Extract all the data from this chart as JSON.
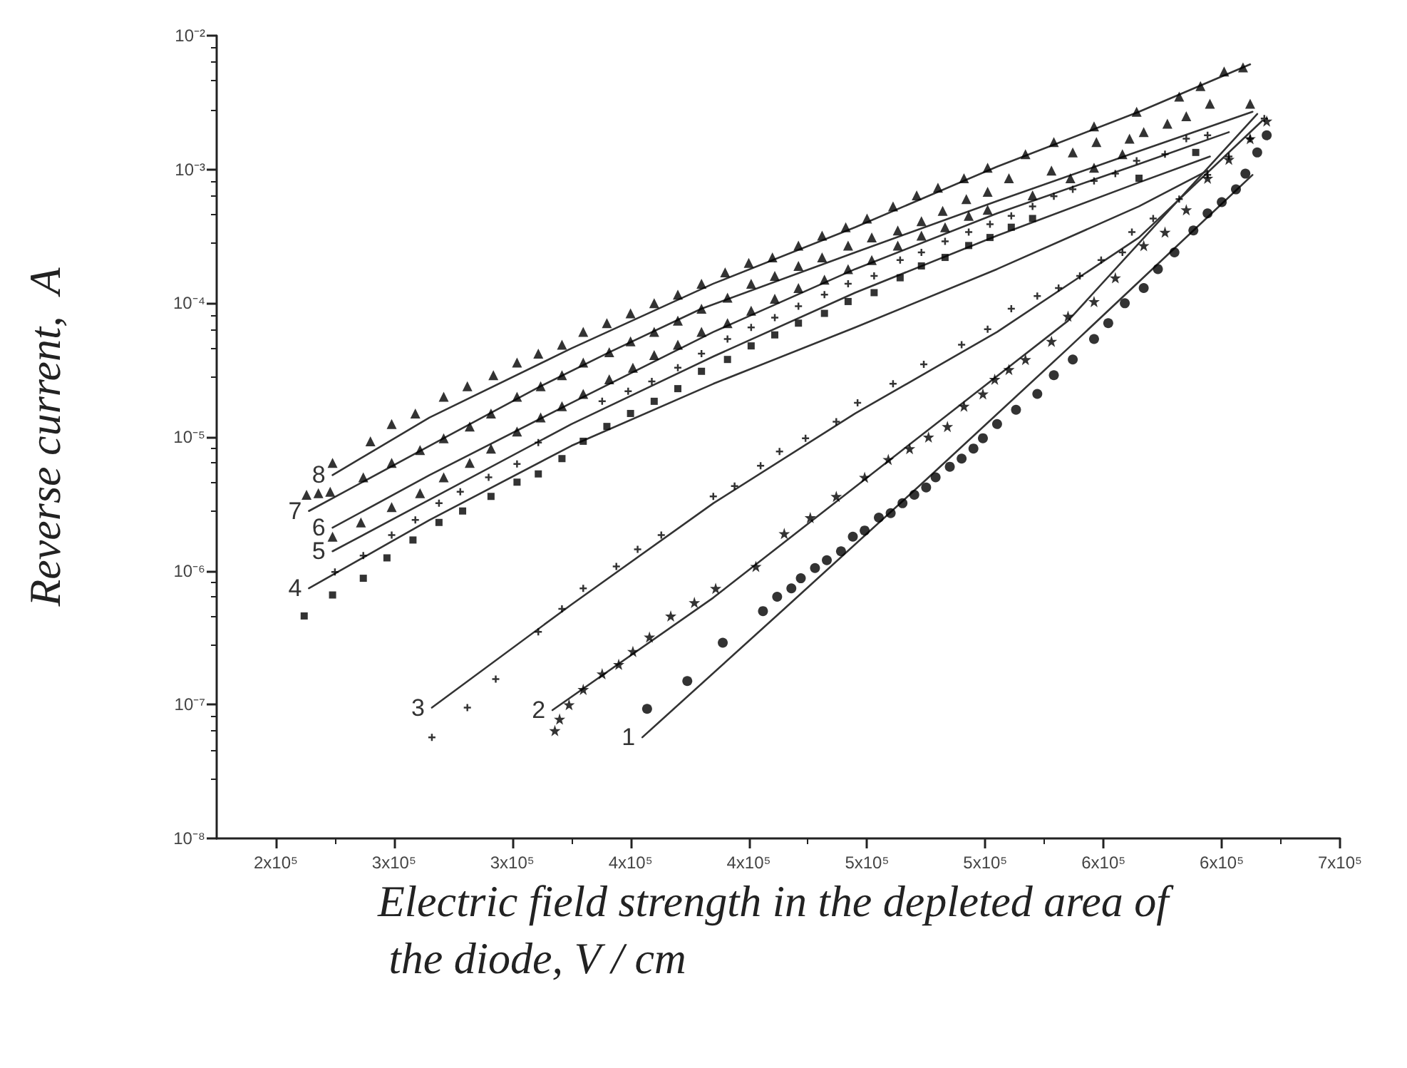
{
  "chart_data": {
    "type": "scatter",
    "xlabel": "Electric field strength in the depleted area of the diode, V / cm",
    "ylabel": "Reverse current,  A",
    "log": "y",
    "grid": false,
    "xlim": [
      200000,
      675000
    ],
    "xticks": [
      {
        "value": 225000,
        "label": "2x10⁵"
      },
      {
        "value": 275000,
        "label": "3x10⁵"
      },
      {
        "value": 325000,
        "label": "3x10⁵"
      },
      {
        "value": 375000,
        "label": "4x10⁵"
      },
      {
        "value": 425000,
        "label": "4x10⁵"
      },
      {
        "value": 475000,
        "label": "5x10⁵"
      },
      {
        "value": 525000,
        "label": "5x10⁵"
      },
      {
        "value": 575000,
        "label": "6x10⁵"
      },
      {
        "value": 625000,
        "label": "6x10⁵"
      },
      {
        "value": 675000,
        "label": "7x10⁵"
      }
    ],
    "ylim": [
      1e-08,
      0.01
    ],
    "yticks": [
      {
        "value": 1e-08,
        "label": "10⁻⁸"
      },
      {
        "value": 1e-07,
        "label": "10⁻⁷"
      },
      {
        "value": 1e-06,
        "label": "10⁻⁶"
      },
      {
        "value": 1e-05,
        "label": "10⁻⁵"
      },
      {
        "value": 0.0001,
        "label": "10⁻⁴"
      },
      {
        "value": 0.001,
        "label": "10⁻³"
      },
      {
        "value": 0.01,
        "label": "10⁻²"
      }
    ],
    "series": [
      {
        "marker": "circle",
        "color": "#000000",
        "x": [
          382000,
          399000,
          414000,
          431000,
          437000,
          443000,
          447000,
          453000,
          458000,
          464000,
          469000,
          474000,
          480000,
          485000,
          490000,
          495000,
          500000,
          504000,
          510000,
          515000,
          520000,
          524000,
          530000,
          538000,
          547000,
          554000,
          562000,
          571000,
          577000,
          584000,
          592000,
          598000,
          605000,
          613000,
          619000,
          625000,
          631000,
          635000,
          640000,
          644000
        ],
        "values": [
          9.3e-08,
          1.5e-07,
          2.9e-07,
          5e-07,
          6.4e-07,
          7.4e-07,
          8.8e-07,
          1.05e-06,
          1.2e-06,
          1.4e-06,
          1.8e-06,
          2e-06,
          2.5e-06,
          2.7e-06,
          3.2e-06,
          3.7e-06,
          4.2e-06,
          5e-06,
          6e-06,
          6.9e-06,
          8.2e-06,
          9.8e-06,
          1.25e-05,
          1.6e-05,
          2.1e-05,
          2.9e-05,
          3.8e-05,
          5.4e-05,
          7.1e-05,
          0.0001,
          0.00013,
          0.00018,
          0.00024,
          0.00035,
          0.00047,
          0.00057,
          0.00071,
          0.00093,
          0.00134,
          0.0018
        ]
      },
      {
        "name": "1",
        "type": "line",
        "marker": "none",
        "color": "#333333",
        "x": [
          380000,
          440000,
          500000,
          560000,
          638000
        ],
        "values": [
          5.7e-08,
          5.2e-07,
          4.8e-06,
          4.6e-05,
          0.00091
        ]
      },
      {
        "marker": "star",
        "color": "#000000",
        "x": [
          343000,
          345000,
          349000,
          355000,
          363000,
          370000,
          376000,
          383000,
          392000,
          402000,
          411000,
          428000,
          440000,
          451000,
          462000,
          474000,
          484000,
          493000,
          501000,
          509000,
          516000,
          524000,
          529000,
          535000,
          542000,
          553000,
          560000,
          571000,
          580000,
          592000,
          601000,
          610000,
          619000,
          628000,
          637000,
          644000
        ],
        "values": [
          6.4e-08,
          7.8e-08,
          1e-07,
          1.3e-07,
          1.7e-07,
          2e-07,
          2.5e-07,
          3.2e-07,
          4.6e-07,
          5.8e-07,
          7.4e-07,
          1.08e-06,
          1.9e-06,
          2.5e-06,
          3.6e-06,
          5e-06,
          6.8e-06,
          8.2e-06,
          1e-05,
          1.2e-05,
          1.7e-05,
          2.1e-05,
          2.7e-05,
          3.2e-05,
          3.8e-05,
          5.2e-05,
          8e-05,
          0.000103,
          0.000155,
          0.00027,
          0.00034,
          0.0005,
          0.00086,
          0.00119,
          0.0017,
          0.0023
        ]
      },
      {
        "name": "2",
        "type": "line",
        "marker": "none",
        "color": "#333333",
        "x": [
          342000,
          410000,
          500000,
          560000,
          640000
        ],
        "values": [
          9.1e-08,
          6.3e-07,
          1.1e-05,
          7.4e-05,
          0.0026
        ]
      },
      {
        "marker": "cross",
        "color": "#000000",
        "x": [
          291000,
          306000,
          318000,
          336000,
          346000,
          355000,
          369000,
          378000,
          388000,
          410000,
          419000,
          430000,
          438000,
          449000,
          462000,
          471000,
          486000,
          499000,
          515000,
          526000,
          536000,
          547000,
          556000,
          565000,
          574000,
          583000,
          587000,
          596000,
          607000,
          619000,
          628000,
          637000,
          643000
        ],
        "values": [
          5.7e-08,
          9.5e-08,
          1.55e-07,
          3.5e-07,
          5.2e-07,
          7.4e-07,
          1.08e-06,
          1.45e-06,
          1.85e-06,
          3.6e-06,
          4.3e-06,
          6.1e-06,
          7.8e-06,
          9.8e-06,
          1.3e-05,
          1.8e-05,
          2.5e-05,
          3.5e-05,
          4.9e-05,
          6.4e-05,
          9.1e-05,
          0.000113,
          0.00013,
          0.00016,
          0.00021,
          0.00024,
          0.00034,
          0.00043,
          0.0006,
          0.00091,
          0.00125,
          0.0017,
          0.0024
        ]
      },
      {
        "name": "3",
        "type": "line",
        "marker": "none",
        "color": "#333333",
        "x": [
          291000,
          350000,
          410000,
          470000,
          530000,
          590000,
          642000
        ],
        "values": [
          9.5e-08,
          5.6e-07,
          3.2e-06,
          1.5e-05,
          6.1e-05,
          0.00031,
          0.0023
        ]
      },
      {
        "marker": "square",
        "color": "#000000",
        "x": [
          237000,
          249000,
          262000,
          272000,
          283000,
          294000,
          304000,
          316000,
          327000,
          336000,
          346000,
          355000,
          365000,
          375000,
          385000,
          395000,
          405000,
          416000,
          426000,
          436000,
          446000,
          457000,
          467000,
          478000,
          489000,
          498000,
          508000,
          518000,
          527000,
          536000,
          545000,
          590000,
          614000
        ],
        "values": [
          4.6e-07,
          6.6e-07,
          8.8e-07,
          1.25e-06,
          1.7e-06,
          2.3e-06,
          2.8e-06,
          3.6e-06,
          4.6e-06,
          5.3e-06,
          6.9e-06,
          9.3e-06,
          1.2e-05,
          1.5e-05,
          1.85e-05,
          2.3e-05,
          3.1e-05,
          3.8e-05,
          4.8e-05,
          5.8e-05,
          7.1e-05,
          8.4e-05,
          0.000103,
          0.00012,
          0.000155,
          0.00019,
          0.00022,
          0.00027,
          0.00031,
          0.00037,
          0.00043,
          0.00086,
          0.00134
        ]
      },
      {
        "name": "4",
        "type": "line",
        "marker": "none",
        "color": "#333333",
        "x": [
          239000,
          290000,
          350000,
          410000,
          470000,
          530000,
          590000,
          619000
        ],
        "values": [
          7.4e-07,
          2.4e-06,
          8.6e-06,
          2.5e-05,
          6.6e-05,
          0.00018,
          0.00053,
          0.00098
        ]
      },
      {
        "marker": "cross",
        "color": "#000000",
        "x": [
          250000,
          262000,
          274000,
          284000,
          294000,
          303000,
          315000,
          327000,
          336000,
          363000,
          374000,
          384000,
          395000,
          405000,
          416000,
          426000,
          436000,
          446000,
          457000,
          467000,
          478000,
          489000,
          498000,
          508000,
          518000,
          527000,
          536000,
          545000,
          554000,
          562000,
          571000,
          580000,
          589000,
          601000,
          610000,
          619000
        ],
        "values": [
          9.8e-07,
          1.3e-06,
          1.85e-06,
          2.4e-06,
          3.2e-06,
          3.9e-06,
          5e-06,
          6.3e-06,
          9.1e-06,
          1.85e-05,
          2.2e-05,
          2.6e-05,
          3.3e-05,
          4.2e-05,
          5.4e-05,
          6.6e-05,
          7.8e-05,
          9.5e-05,
          0.000116,
          0.00014,
          0.00016,
          0.00021,
          0.00024,
          0.00029,
          0.00034,
          0.00039,
          0.00045,
          0.00053,
          0.00063,
          0.00071,
          0.00082,
          0.00093,
          0.00116,
          0.0013,
          0.0017,
          0.0018
        ]
      },
      {
        "name": "5",
        "type": "line",
        "marker": "none",
        "color": "#333333",
        "x": [
          249000,
          290000,
          350000,
          410000,
          470000,
          530000,
          590000,
          620000
        ],
        "values": [
          1.4e-06,
          3.4e-06,
          1.25e-05,
          4e-05,
          0.00012,
          0.00032,
          0.0008,
          0.00125
        ]
      },
      {
        "marker": "triangle",
        "color": "#000000",
        "x": [
          249000,
          261000,
          274000,
          286000,
          296000,
          307000,
          316000,
          327000,
          337000,
          346000,
          355000,
          366000,
          376000,
          385000,
          395000,
          405000,
          416000,
          426000,
          436000,
          446000,
          457000,
          467000,
          477000,
          488000,
          498000,
          508000,
          518000,
          526000,
          545000,
          561000,
          571000,
          583000,
          592000,
          610000,
          637000
        ],
        "values": [
          1.8e-06,
          2.3e-06,
          3e-06,
          3.8e-06,
          5e-06,
          6.4e-06,
          8.2e-06,
          1.1e-05,
          1.4e-05,
          1.7e-05,
          2.1e-05,
          2.7e-05,
          3.3e-05,
          4.1e-05,
          4.9e-05,
          6.1e-05,
          7.1e-05,
          8.8e-05,
          0.000108,
          0.00013,
          0.00015,
          0.00018,
          0.00021,
          0.00027,
          0.00032,
          0.00037,
          0.00045,
          0.0005,
          0.00064,
          0.00086,
          0.00103,
          0.0013,
          0.0019,
          0.0025,
          0.0031
        ]
      },
      {
        "name": "6",
        "type": "line",
        "marker": "none",
        "color": "#333333",
        "x": [
          249000,
          290000,
          350000,
          410000,
          470000,
          530000,
          590000,
          628000
        ],
        "values": [
          2.1e-06,
          5.2e-06,
          1.8e-05,
          6.1e-05,
          0.00018,
          0.00047,
          0.0011,
          0.0019
        ]
      },
      {
        "marker": "triangle",
        "color": "#000000",
        "x": [
          262000,
          274000,
          286000,
          296000,
          307000,
          316000,
          327000,
          337000,
          346000,
          355000,
          366000,
          375000,
          385000,
          395000,
          405000,
          416000,
          426000,
          436000,
          446000,
          456000,
          467000,
          477000,
          488000,
          498000,
          507000,
          517000,
          526000,
          535000,
          553000,
          562000,
          572000,
          586000,
          602000,
          620000
        ],
        "values": [
          5e-06,
          6.4e-06,
          8e-06,
          9.8e-06,
          1.2e-05,
          1.5e-05,
          2e-05,
          2.4e-05,
          2.9e-05,
          3.6e-05,
          4.3e-05,
          5.2e-05,
          6.1e-05,
          7.4e-05,
          9.1e-05,
          0.00011,
          0.00014,
          0.00016,
          0.00019,
          0.00022,
          0.00027,
          0.00031,
          0.00035,
          0.00041,
          0.00049,
          0.0006,
          0.00068,
          0.00086,
          0.00098,
          0.00134,
          0.0016,
          0.0017,
          0.0022,
          0.0031
        ]
      },
      {
        "name": "7",
        "type": "line",
        "marker": "none",
        "color": "#333333",
        "x": [
          239000,
          296000,
          337000,
          366000,
          405000,
          470000,
          530000,
          590000,
          638000
        ],
        "values": [
          2.8e-06,
          9.8e-06,
          2.4e-05,
          4.3e-05,
          9.1e-05,
          0.00024,
          0.00058,
          0.00137,
          0.0027
        ]
      },
      {
        "marker": "triangle",
        "color": "#000000",
        "x": [
          238000,
          243000,
          248000,
          249000,
          265000,
          274000,
          284000,
          296000,
          306000,
          317000,
          327000,
          336000,
          346000,
          355000,
          365000,
          375000,
          385000,
          395000,
          405000,
          415000,
          425000,
          435000,
          446000,
          456000,
          466000,
          475000,
          486000,
          496000,
          505000,
          516000,
          526000,
          542000,
          554000,
          571000,
          589000,
          607000,
          616000,
          626000,
          634000
        ],
        "values": [
          3.7e-06,
          3.8e-06,
          3.9e-06,
          6.4e-06,
          9.3e-06,
          1.25e-05,
          1.5e-05,
          2e-05,
          2.4e-05,
          2.9e-05,
          3.6e-05,
          4.2e-05,
          4.9e-05,
          6.1e-05,
          7.1e-05,
          8.4e-05,
          0.0001,
          0.000116,
          0.00014,
          0.00017,
          0.0002,
          0.00022,
          0.00027,
          0.00032,
          0.00037,
          0.00043,
          0.00053,
          0.00064,
          0.00073,
          0.00086,
          0.00103,
          0.0013,
          0.0016,
          0.0021,
          0.0027,
          0.0035,
          0.0042,
          0.0054,
          0.0058
        ]
      },
      {
        "name": "8",
        "type": "line",
        "marker": "none",
        "color": "#333333",
        "x": [
          249000,
          290000,
          350000,
          410000,
          470000,
          530000,
          590000,
          637000
        ],
        "values": [
          5.2e-06,
          1.4e-05,
          4.6e-05,
          0.00014,
          0.00037,
          0.00105,
          0.0027,
          0.0061
        ]
      }
    ]
  }
}
